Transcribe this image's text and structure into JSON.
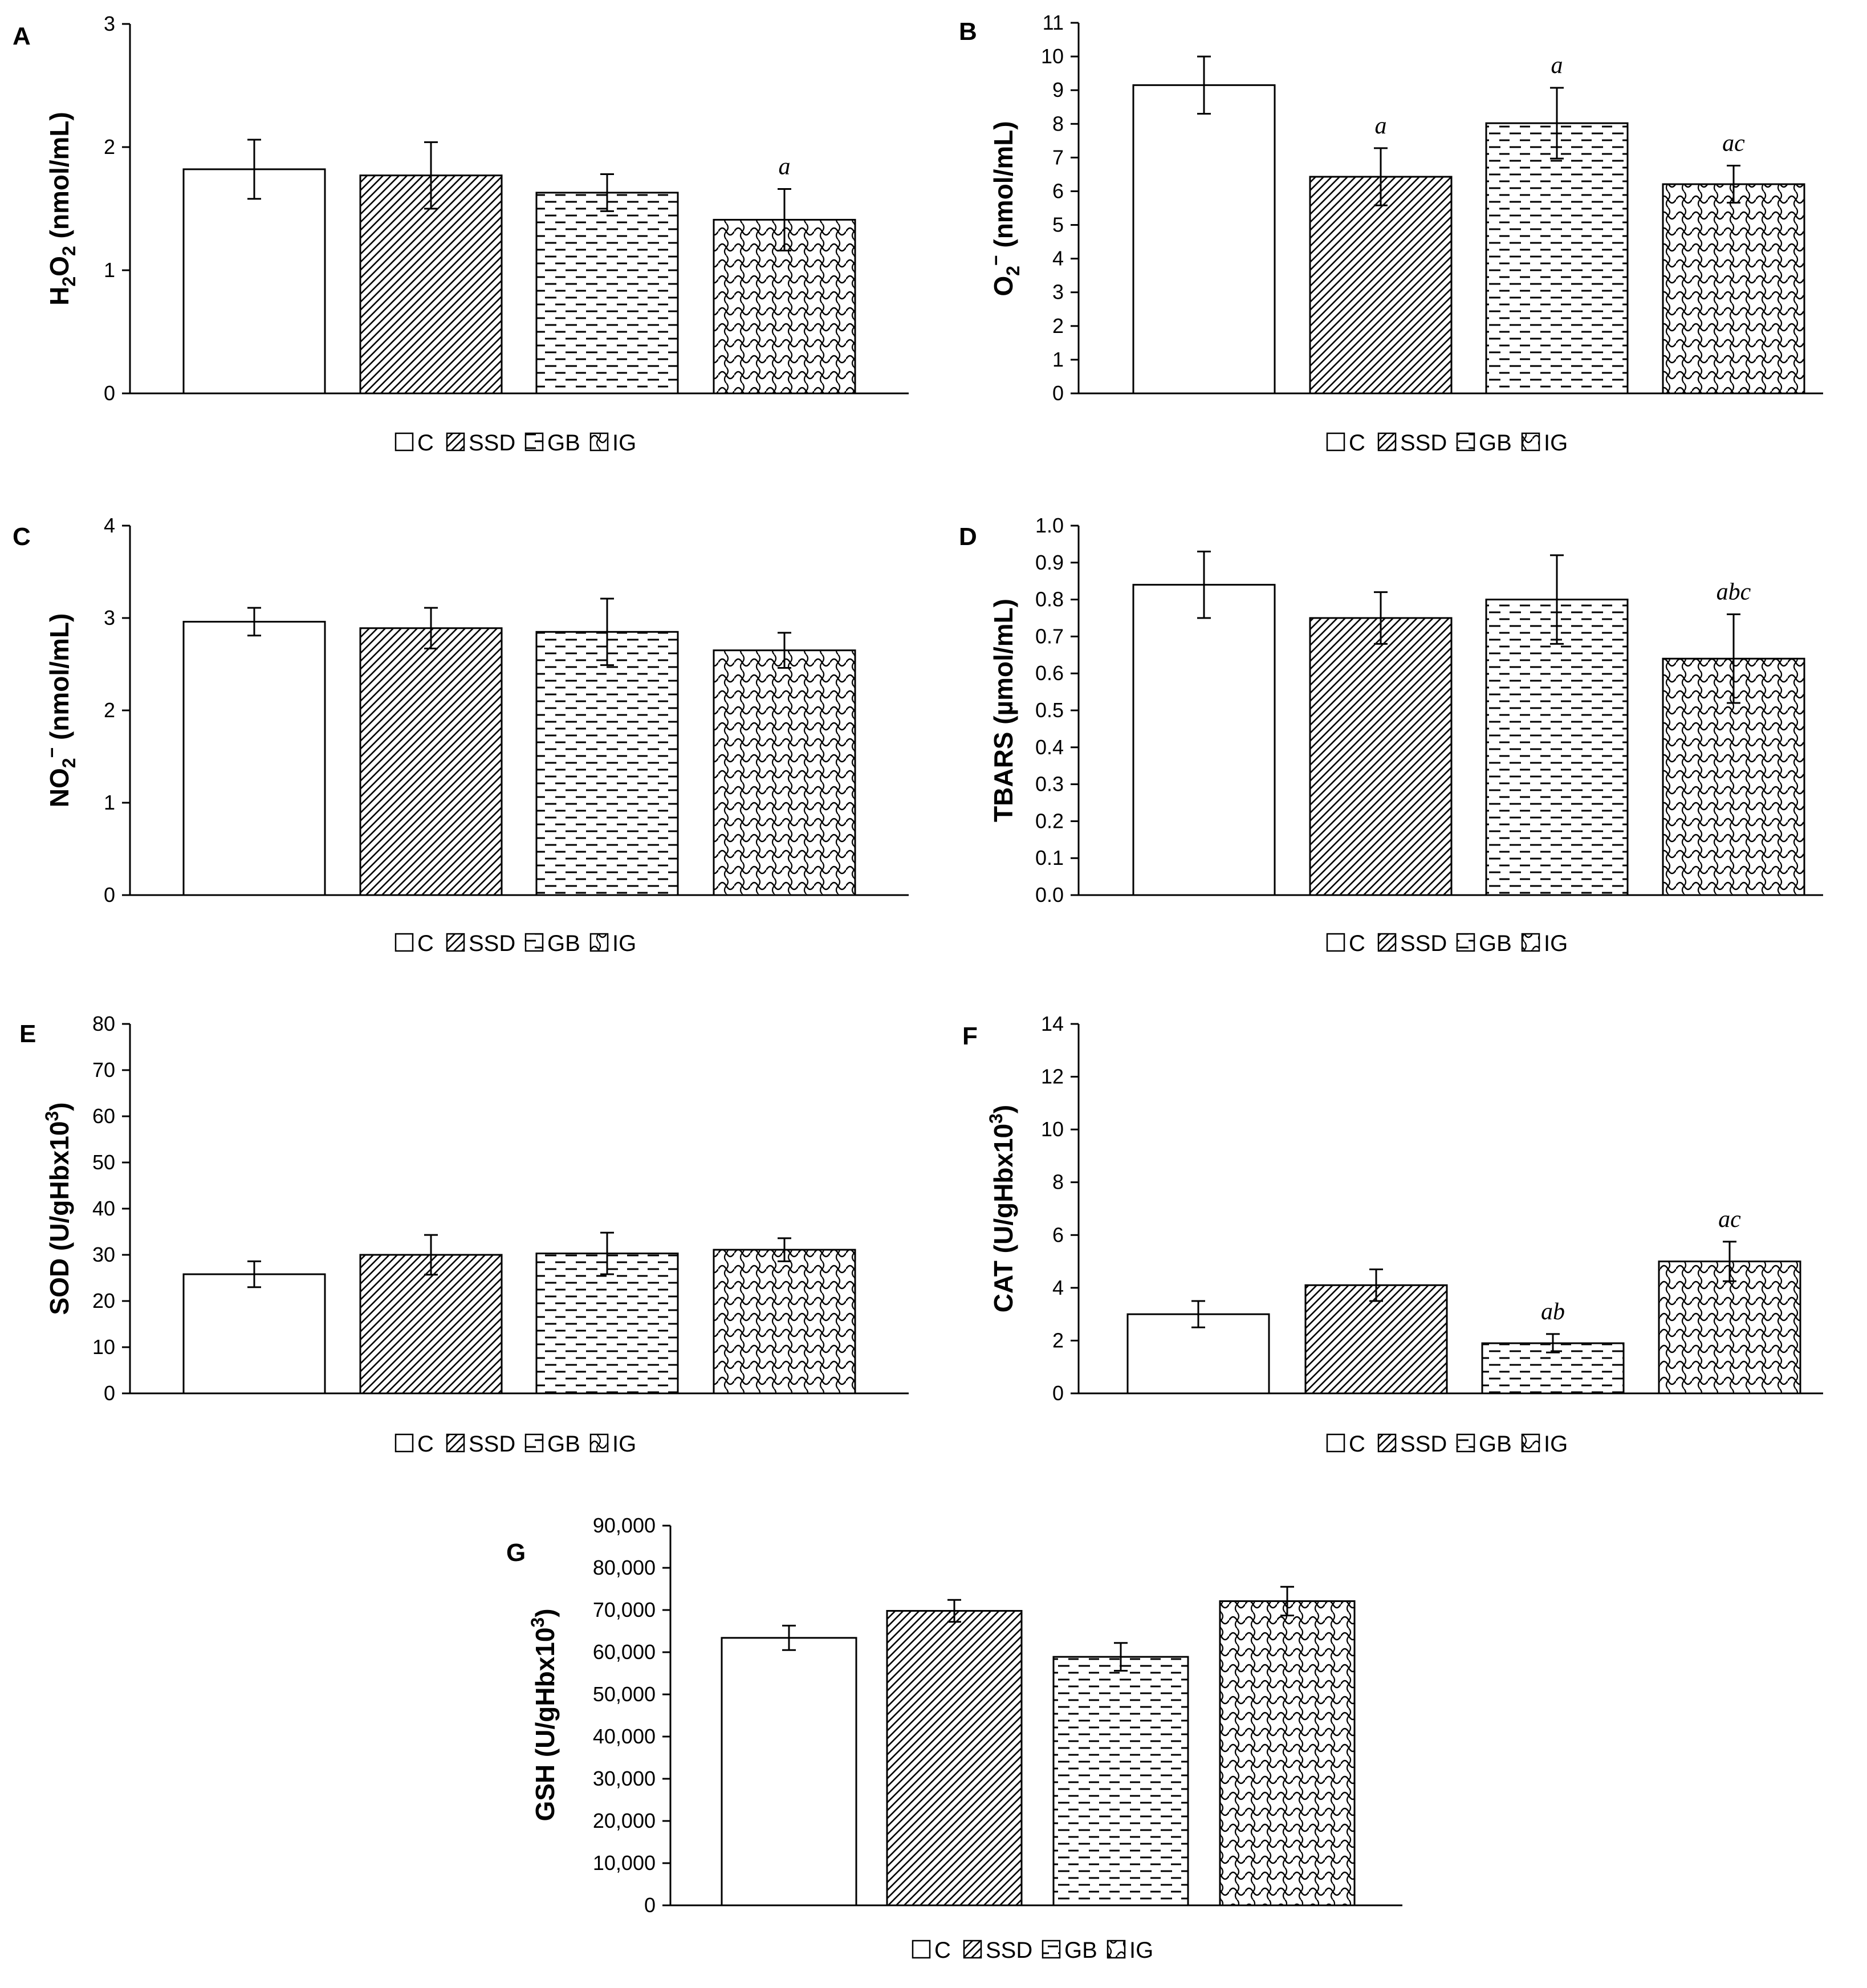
{
  "legend": [
    {
      "label": "C",
      "pattern": "none"
    },
    {
      "label": "SSD",
      "pattern": "diagonal"
    },
    {
      "label": "GB",
      "pattern": "dashes"
    },
    {
      "label": "IG",
      "pattern": "wave"
    }
  ],
  "colors": {
    "axis": "#000000",
    "bar_fill": "#ffffff",
    "bar_stroke": "#000000"
  },
  "chart_data": [
    {
      "panel": "A",
      "type": "bar",
      "ylabel": {
        "base": "H",
        "s1": "2",
        "mid": "O",
        "s2": "2",
        "tail": " (nmol/mL)"
      },
      "categories": [
        "C",
        "SSD",
        "GB",
        "IG"
      ],
      "values": [
        1.82,
        1.77,
        1.63,
        1.41
      ],
      "errors": [
        0.24,
        0.27,
        0.15,
        0.25
      ],
      "significance": [
        "",
        "",
        "",
        "a"
      ],
      "ylim": [
        0,
        3
      ],
      "yticks": [
        "0",
        "1",
        "2",
        "3"
      ]
    },
    {
      "panel": "B",
      "type": "bar",
      "ylabel": {
        "base": "O",
        "s1": "2",
        "sup": "−",
        "tail": " (nmol/mL)"
      },
      "categories": [
        "C",
        "SSD",
        "GB",
        "IG"
      ],
      "values": [
        9.15,
        6.43,
        8.02,
        6.21
      ],
      "errors": [
        0.85,
        0.85,
        1.05,
        0.55
      ],
      "significance": [
        "",
        "a",
        "a",
        "ac"
      ],
      "ylim": [
        0,
        11
      ],
      "yticks": [
        "0",
        "1",
        "2",
        "3",
        "4",
        "5",
        "6",
        "7",
        "8",
        "9",
        "10",
        "11"
      ]
    },
    {
      "panel": "C",
      "type": "bar",
      "ylabel": {
        "base": "NO",
        "s1": "2",
        "sup": "−",
        "tail": " (nmol/mL)"
      },
      "categories": [
        "C",
        "SSD",
        "GB",
        "IG"
      ],
      "values": [
        2.96,
        2.89,
        2.85,
        2.65
      ],
      "errors": [
        0.15,
        0.22,
        0.36,
        0.19
      ],
      "significance": [
        "",
        "",
        "",
        ""
      ],
      "ylim": [
        0,
        4
      ],
      "yticks": [
        "0",
        "1",
        "2",
        "3",
        "4"
      ]
    },
    {
      "panel": "D",
      "type": "bar",
      "ylabel": {
        "base": "TBARS (µmol/mL)"
      },
      "categories": [
        "C",
        "SSD",
        "GB",
        "IG"
      ],
      "values": [
        0.84,
        0.75,
        0.8,
        0.64
      ],
      "errors": [
        0.09,
        0.07,
        0.12,
        0.12
      ],
      "significance": [
        "",
        "",
        "",
        "abc"
      ],
      "ylim": [
        0,
        1.0
      ],
      "yticks": [
        "0.0",
        "0.1",
        "0.2",
        "0.3",
        "0.4",
        "0.5",
        "0.6",
        "0.7",
        "0.8",
        "0.9",
        "1.0"
      ]
    },
    {
      "panel": "E",
      "type": "bar",
      "ylabel": {
        "base": "SOD (U/gHbx10",
        "sup": "3",
        "tail": ")"
      },
      "categories": [
        "C",
        "SSD",
        "GB",
        "IG"
      ],
      "values": [
        25.8,
        30.0,
        30.3,
        31.1
      ],
      "errors": [
        2.8,
        4.3,
        4.5,
        2.5
      ],
      "significance": [
        "",
        "",
        "",
        ""
      ],
      "ylim": [
        0,
        80
      ],
      "yticks": [
        "0",
        "10",
        "20",
        "30",
        "40",
        "50",
        "60",
        "70",
        "80"
      ]
    },
    {
      "panel": "F",
      "type": "bar",
      "ylabel": {
        "base": "CAT (U/gHbx10",
        "sup": "3",
        "tail": ")"
      },
      "categories": [
        "C",
        "SSD",
        "GB",
        "IG"
      ],
      "values": [
        3.0,
        4.1,
        1.9,
        5.0
      ],
      "errors": [
        0.5,
        0.6,
        0.35,
        0.75
      ],
      "significance": [
        "",
        "",
        "ab",
        "ac"
      ],
      "ylim": [
        0,
        14
      ],
      "yticks": [
        "0",
        "2",
        "4",
        "6",
        "8",
        "10",
        "12",
        "14"
      ]
    },
    {
      "panel": "G",
      "type": "bar",
      "ylabel": {
        "base": "GSH (U/gHbx10",
        "sup": "3",
        "tail": ")"
      },
      "categories": [
        "C",
        "SSD",
        "GB",
        "IG"
      ],
      "values": [
        63400,
        69800,
        58900,
        72100
      ],
      "errors": [
        2900,
        2600,
        3300,
        3400
      ],
      "significance": [
        "",
        "",
        "",
        ""
      ],
      "ylim": [
        0,
        90000
      ],
      "yticks": [
        "0",
        "10,000",
        "20,000",
        "30,000",
        "40,000",
        "50,000",
        "60,000",
        "70,000",
        "80,000",
        "90,000"
      ]
    }
  ]
}
